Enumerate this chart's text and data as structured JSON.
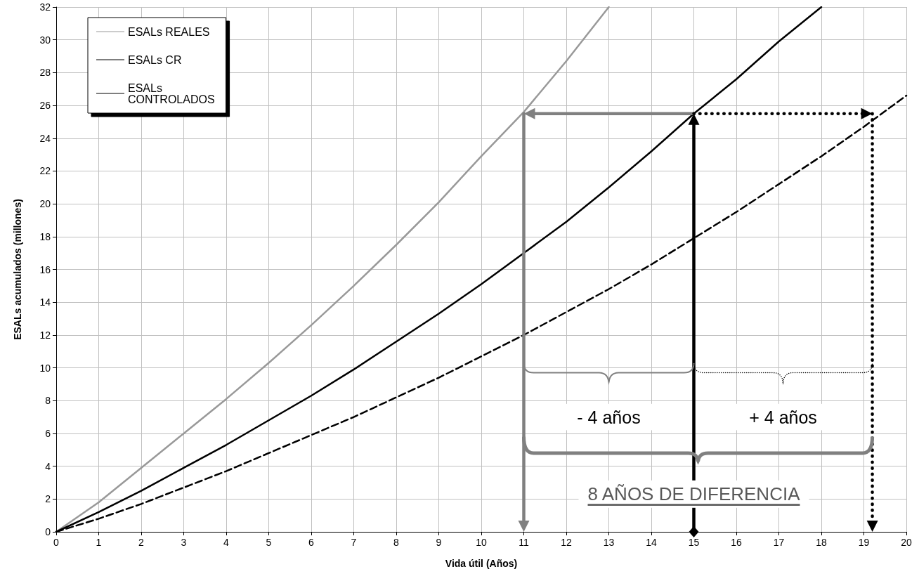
{
  "chart_data": {
    "type": "line",
    "xlabel": "Vida útil (Años)",
    "ylabel": "ESALs acumulados (millones)",
    "x": [
      0,
      1,
      2,
      3,
      4,
      5,
      6,
      7,
      8,
      9,
      10,
      11,
      12,
      13,
      14,
      15,
      16,
      17,
      18,
      19,
      20
    ],
    "series": [
      {
        "name": "ESALs REALES",
        "color": "#999999",
        "line_style": "solid",
        "values": [
          0,
          1.8,
          3.9,
          6.0,
          8.1,
          10.3,
          12.6,
          15.0,
          17.5,
          20.1,
          22.9,
          25.6,
          28.7,
          32,
          null,
          null,
          null,
          null,
          null,
          null,
          null
        ]
      },
      {
        "name": "ESALs CR",
        "color": "#000000",
        "line_style": "solid",
        "values": [
          0,
          1.2,
          2.5,
          3.9,
          5.3,
          6.8,
          8.3,
          9.9,
          11.6,
          13.3,
          15.1,
          17.0,
          18.9,
          21.0,
          23.2,
          25.5,
          27.6,
          29.9,
          32,
          null,
          null
        ]
      },
      {
        "name": "ESALs CONTROLADOS",
        "color": "#000000",
        "line_style": "dashed",
        "values": [
          0,
          0.8,
          1.7,
          2.7,
          3.7,
          4.8,
          5.9,
          7.0,
          8.2,
          9.4,
          10.7,
          12.0,
          13.4,
          14.8,
          16.3,
          17.9,
          19.5,
          21.2,
          22.9,
          24.7,
          26.6
        ]
      }
    ],
    "xlim": [
      0,
      20
    ],
    "xticks": [
      0,
      1,
      2,
      3,
      4,
      5,
      6,
      7,
      8,
      9,
      10,
      11,
      12,
      13,
      14,
      15,
      16,
      17,
      18,
      19,
      20
    ],
    "ylim": [
      0,
      32
    ],
    "yticks": [
      0,
      2,
      4,
      6,
      8,
      10,
      12,
      14,
      16,
      18,
      20,
      22,
      24,
      26,
      28,
      30,
      32
    ],
    "grid": true,
    "legend": "top left",
    "marker": "none",
    "ref_lines": [
      {
        "axis": "x",
        "value": 11,
        "color": "#808080",
        "line_style": "solid"
      },
      {
        "axis": "x",
        "value": 15,
        "color": "#000000",
        "line_style": "solid"
      },
      {
        "axis": "x",
        "value": 19.2,
        "color": "#000000",
        "line_style": "dotted"
      },
      {
        "axis": "y",
        "value": 25.5
      }
    ],
    "annotations": [
      "- 4 años",
      "+ 4 años",
      "8 AÑOS DE DIFERENCIA"
    ]
  }
}
